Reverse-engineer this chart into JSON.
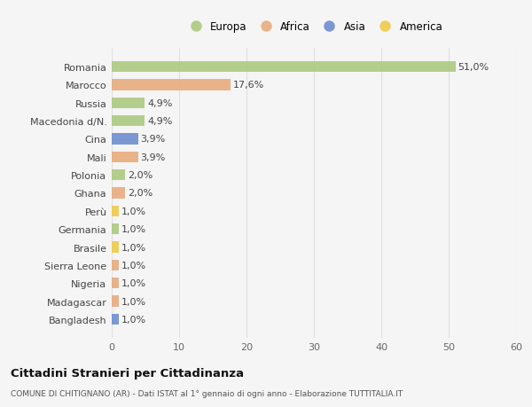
{
  "countries": [
    "Romania",
    "Marocco",
    "Russia",
    "Macedonia d/N.",
    "Cina",
    "Mali",
    "Polonia",
    "Ghana",
    "Perù",
    "Germania",
    "Brasile",
    "Sierra Leone",
    "Nigeria",
    "Madagascar",
    "Bangladesh"
  ],
  "values": [
    51.0,
    17.6,
    4.9,
    4.9,
    3.9,
    3.9,
    2.0,
    2.0,
    1.0,
    1.0,
    1.0,
    1.0,
    1.0,
    1.0,
    1.0
  ],
  "labels": [
    "51,0%",
    "17,6%",
    "4,9%",
    "4,9%",
    "3,9%",
    "3,9%",
    "2,0%",
    "2,0%",
    "1,0%",
    "1,0%",
    "1,0%",
    "1,0%",
    "1,0%",
    "1,0%",
    "1,0%"
  ],
  "continents": [
    "Europa",
    "Africa",
    "Europa",
    "Europa",
    "Asia",
    "Africa",
    "Europa",
    "Africa",
    "America",
    "Europa",
    "America",
    "Africa",
    "Africa",
    "Africa",
    "Asia"
  ],
  "continent_colors": {
    "Europa": "#a8c87a",
    "Africa": "#e8a878",
    "Asia": "#6688cc",
    "America": "#f0c840"
  },
  "legend_order": [
    "Europa",
    "Africa",
    "Asia",
    "America"
  ],
  "title": "Cittadini Stranieri per Cittadinanza",
  "subtitle": "COMUNE DI CHITIGNANO (AR) - Dati ISTAT al 1° gennaio di ogni anno - Elaborazione TUTTITALIA.IT",
  "xlim": [
    0,
    60
  ],
  "xticks": [
    0,
    10,
    20,
    30,
    40,
    50,
    60
  ],
  "bg_color": "#f5f5f5",
  "bar_height": 0.6,
  "grid_color": "#e0e0e0",
  "label_fontsize": 8,
  "ytick_fontsize": 8,
  "xtick_fontsize": 8
}
